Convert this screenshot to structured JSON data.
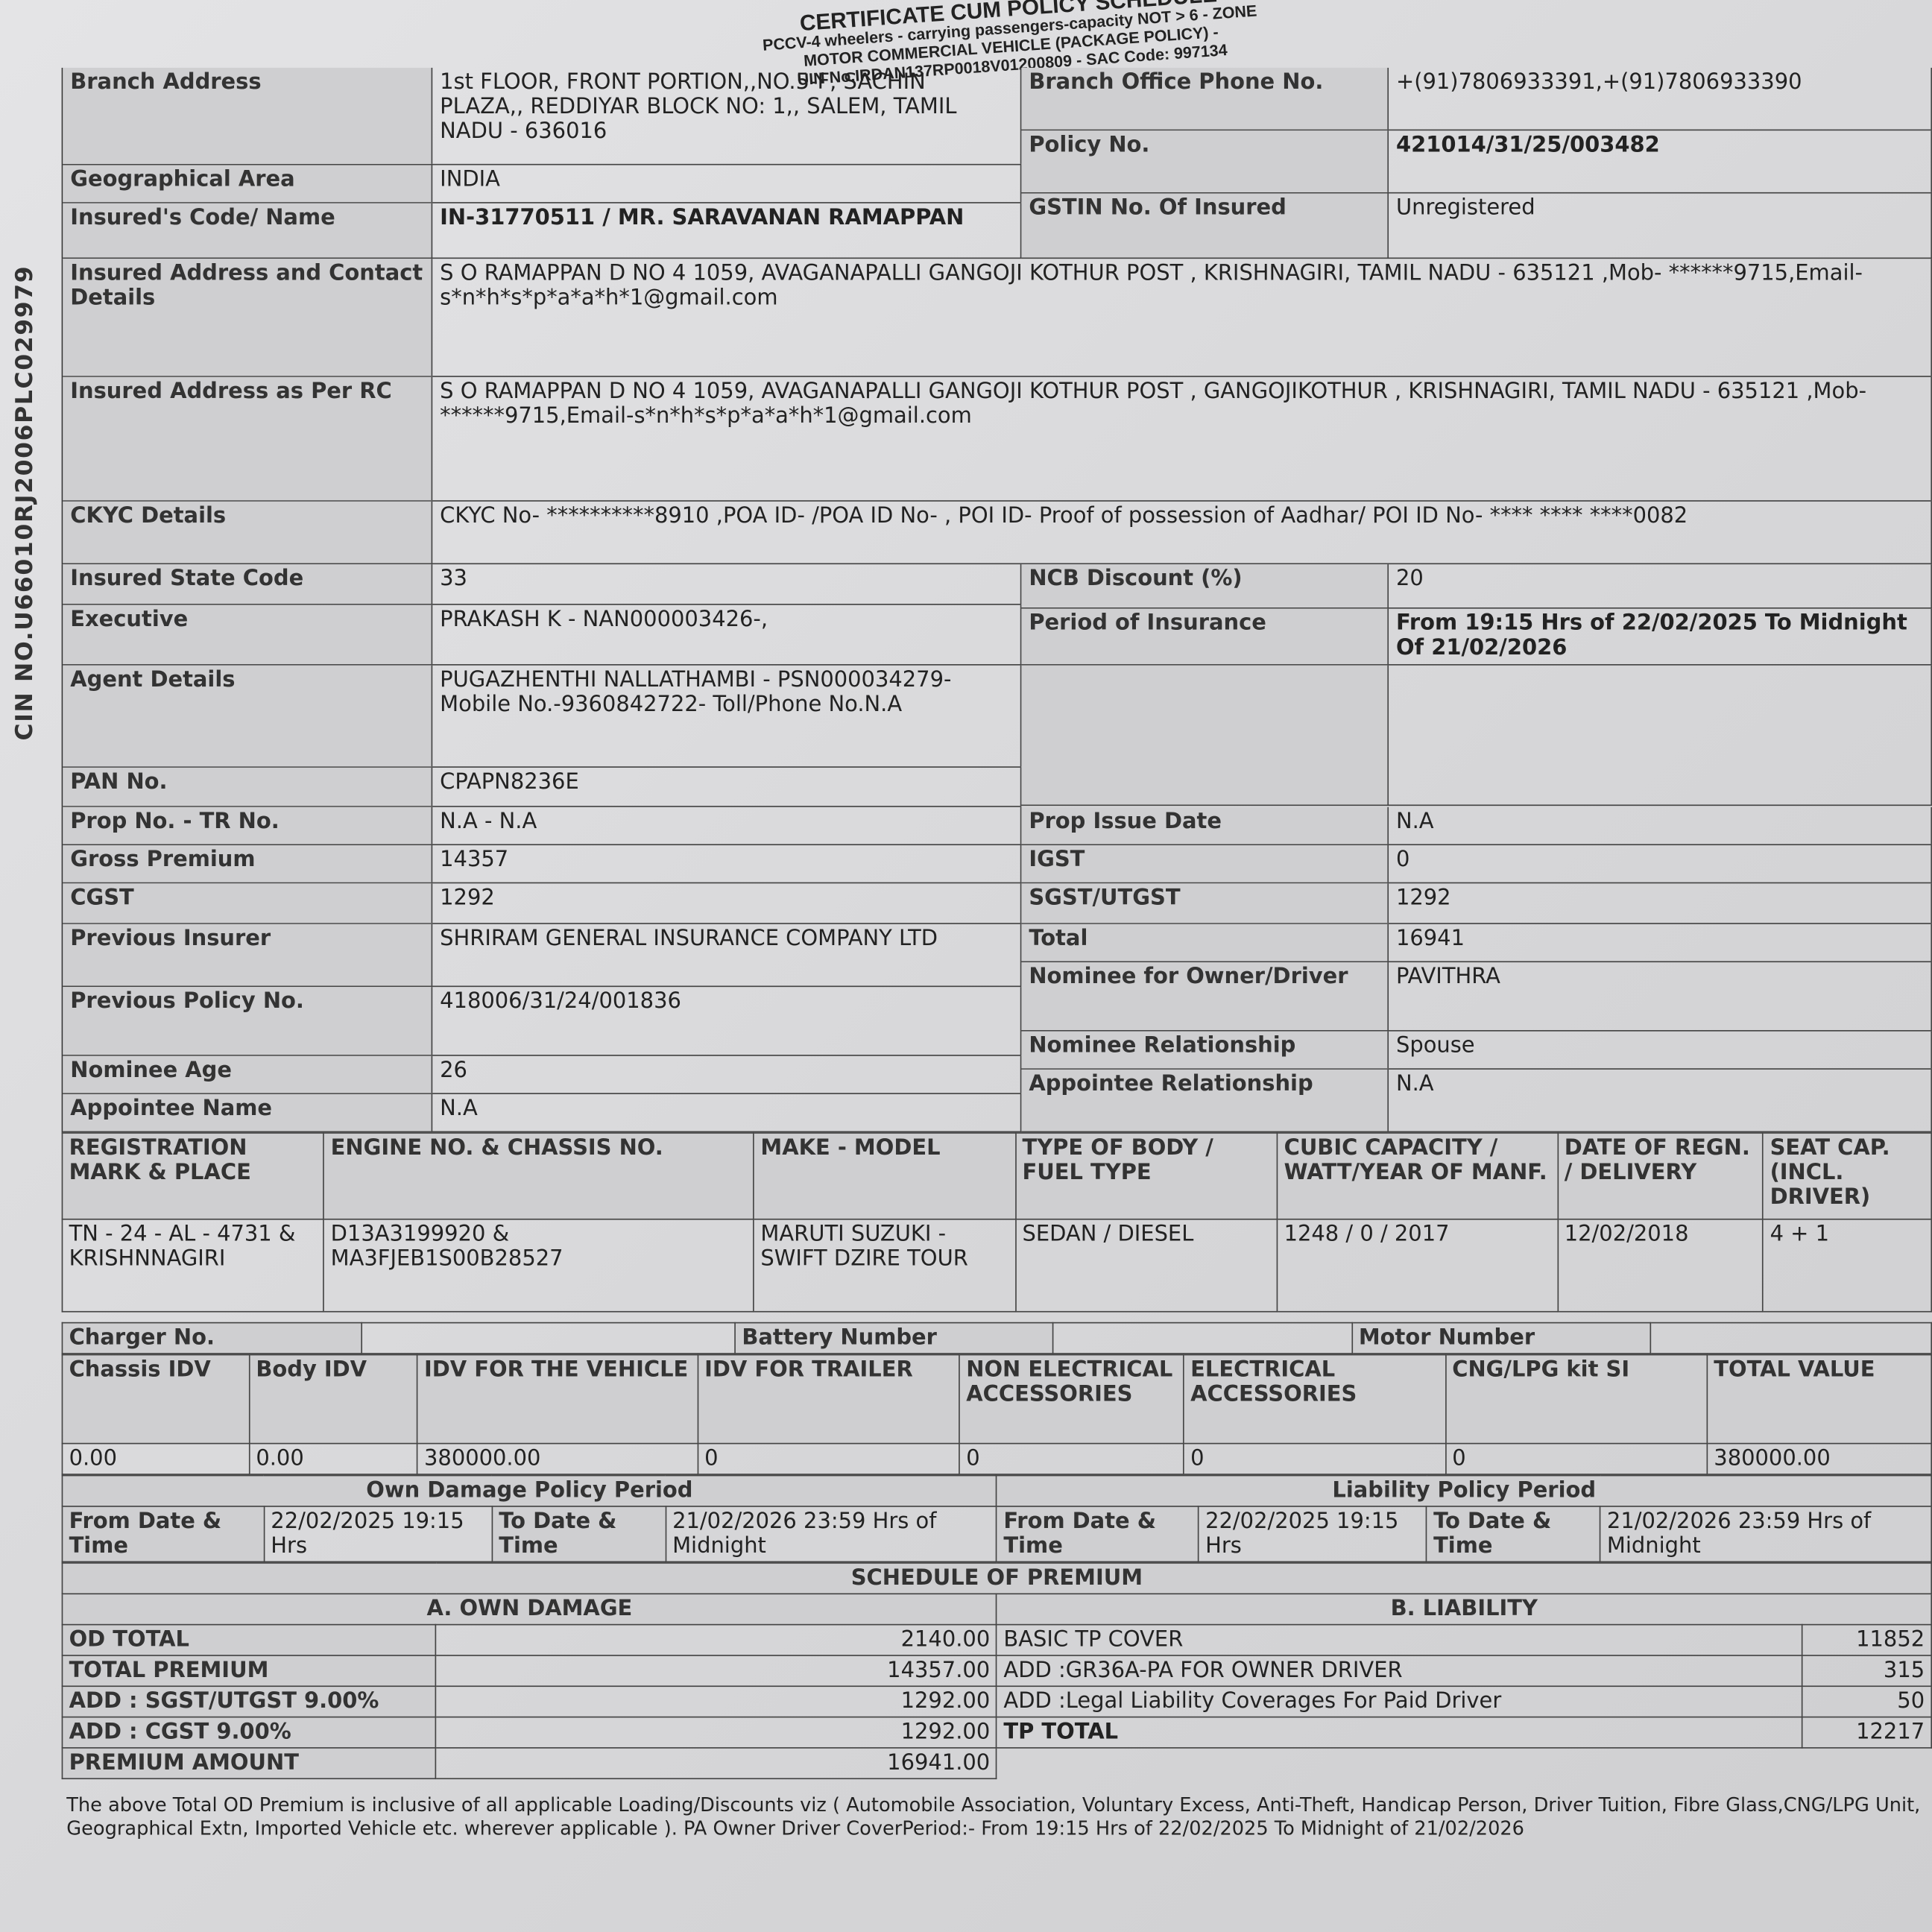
{
  "header": {
    "title": "CERTIFICATE CUM POLICY SCHEDULE",
    "line1": "PCCV-4 wheelers - carrying passengers-capacity NOT > 6 - ZONE",
    "line2": "MOTOR COMMERCIAL VEHICLE (PACKAGE POLICY) -",
    "line3": "UIN No.IRDAN137RP0018V01200809 - SAC Code: 997134"
  },
  "cin": "CIN NO.U66010RJ2006PLC029979",
  "sectionA": {
    "left": [
      {
        "label": "Branch Address",
        "value": "1st FLOOR, FRONT PORTION,,NO.5-F, SACHIN PLAZA,, REDDIYAR BLOCK NO: 1,, SALEM, TAMIL NADU - 636016"
      },
      {
        "label": "Geographical Area",
        "value": "INDIA"
      },
      {
        "label": "Insured's Code/ Name",
        "value": "IN-31770511 / MR. SARAVANAN RAMAPPAN",
        "bold": true
      }
    ],
    "right": [
      {
        "label": "Branch Office Phone No.",
        "value": "+(91)7806933391,+(91)7806933390"
      },
      {
        "label": "Policy No.",
        "value": "421014/31/25/003482",
        "bold": true
      },
      {
        "label": "GSTIN No. Of Insured",
        "value": "Unregistered"
      }
    ]
  },
  "sectionB": [
    {
      "label": "Insured Address and Contact Details",
      "value": "S O RAMAPPAN D NO 4 1059, AVAGANAPALLI GANGOJI KOTHUR POST , KRISHNAGIRI, TAMIL NADU - 635121 ,Mob- ******9715,Email-s*n*h*s*p*a*a*h*1@gmail.com"
    },
    {
      "label": "Insured Address as Per RC",
      "value": "S O RAMAPPAN D NO 4 1059, AVAGANAPALLI GANGOJI KOTHUR POST , GANGOJIKOTHUR , KRISHNAGIRI, TAMIL NADU - 635121 ,Mob- ******9715,Email-s*n*h*s*p*a*a*h*1@gmail.com"
    },
    {
      "label": "CKYC Details",
      "value": "CKYC No- **********8910 ,POA ID- /POA ID No- , POI ID- Proof of possession of Aadhar/ POI ID No- **** **** ****0082"
    }
  ],
  "sectionC": {
    "left": [
      {
        "label": "Insured State Code",
        "value": "33"
      },
      {
        "label": "Executive",
        "value": "PRAKASH K - NAN000003426-,"
      },
      {
        "label": "Agent Details",
        "value": "PUGAZHENTHI NALLATHAMBI - PSN000034279- Mobile No.-9360842722- Toll/Phone No.N.A"
      },
      {
        "label": "PAN No.",
        "value": "CPAPN8236E"
      }
    ],
    "right": [
      {
        "label": "NCB Discount (%)",
        "value": "20"
      },
      {
        "label": "Period of Insurance",
        "value": "From 19:15 Hrs of 22/02/2025 To Midnight Of 21/02/2026",
        "bold": true
      },
      {
        "label": "",
        "value": ""
      }
    ]
  },
  "sectionD": {
    "left": [
      {
        "label": "Prop No. - TR No.",
        "value": "N.A - N.A"
      },
      {
        "label": "Gross Premium",
        "value": "14357"
      },
      {
        "label": "CGST",
        "value": "1292"
      },
      {
        "label": "Previous Insurer",
        "value": "SHRIRAM GENERAL INSURANCE COMPANY LTD"
      },
      {
        "label": "Previous Policy No.",
        "value": "418006/31/24/001836"
      },
      {
        "label": "Nominee Age",
        "value": "26"
      },
      {
        "label": "Appointee Name",
        "value": "N.A"
      }
    ],
    "right": [
      {
        "label": "Prop Issue Date",
        "value": "N.A"
      },
      {
        "label": "IGST",
        "value": "0"
      },
      {
        "label": "SGST/UTGST",
        "value": "1292"
      },
      {
        "label": "Total",
        "value": "16941"
      },
      {
        "label": "Nominee for Owner/Driver",
        "value": "PAVITHRA"
      },
      {
        "label": "Nominee Relationship",
        "value": "Spouse"
      },
      {
        "label": "Appointee Relationship",
        "value": "N.A"
      }
    ]
  },
  "vehicle": {
    "headers": [
      "REGISTRATION MARK & PLACE",
      "ENGINE NO. & CHASSIS NO.",
      "MAKE - MODEL",
      "TYPE OF BODY / FUEL TYPE",
      "CUBIC CAPACITY / WATT/YEAR OF MANF.",
      "DATE OF REGN. / DELIVERY",
      "SEAT CAP. (INCL. DRIVER)"
    ],
    "values": [
      "TN - 24 - AL - 4731 & KRISHNNAGIRI",
      "D13A3199920 & MA3FJEB1S00B28527",
      "MARUTI SUZUKI - SWIFT DZIRE TOUR",
      "SEDAN / DIESEL",
      "1248 / 0 / 2017",
      "12/02/2018",
      "4 + 1"
    ]
  },
  "ev": {
    "charger": "Charger No.",
    "battery": "Battery Number",
    "motor": "Motor Number"
  },
  "idv": {
    "headers": [
      "Chassis IDV",
      "Body IDV",
      "IDV FOR THE VEHICLE",
      "IDV FOR TRAILER",
      "NON ELECTRICAL ACCESSORIES",
      "ELECTRICAL ACCESSORIES",
      "CNG/LPG kit SI",
      "TOTAL VALUE"
    ],
    "values": [
      "0.00",
      "0.00",
      "380000.00",
      "0",
      "0",
      "0",
      "0",
      "380000.00"
    ]
  },
  "period": {
    "od_title": "Own Damage Policy Period",
    "tp_title": "Liability Policy Period",
    "from_label": "From Date & Time",
    "to_label": "To Date & Time",
    "od_from": "22/02/2025 19:15 Hrs",
    "od_to": "21/02/2026 23:59 Hrs of Midnight",
    "tp_from": "22/02/2025 19:15 Hrs",
    "tp_to": "21/02/2026 23:59 Hrs of Midnight"
  },
  "premium": {
    "title": "SCHEDULE OF PREMIUM",
    "od_title": "A. OWN DAMAGE",
    "tp_title": "B. LIABILITY",
    "od": [
      {
        "label": "OD TOTAL",
        "value": "2140.00"
      },
      {
        "label": "TOTAL PREMIUM",
        "value": "14357.00"
      },
      {
        "label": "ADD : SGST/UTGST 9.00%",
        "value": "1292.00"
      },
      {
        "label": "ADD : CGST 9.00%",
        "value": "1292.00"
      },
      {
        "label": "PREMIUM AMOUNT",
        "value": "16941.00"
      }
    ],
    "tp": [
      {
        "label": "BASIC TP COVER",
        "value": "11852"
      },
      {
        "label": "ADD :GR36A-PA FOR OWNER DRIVER",
        "value": "315"
      },
      {
        "label": "ADD :Legal Liability Coverages For Paid Driver",
        "value": "50"
      },
      {
        "label": "TP TOTAL",
        "value": "12217",
        "bold": true
      }
    ]
  },
  "note": "The above Total OD Premium is inclusive of all applicable Loading/Discounts viz ( Automobile Association, Voluntary Excess, Anti-Theft, Handicap Person, Driver Tuition, Fibre Glass,CNG/LPG Unit, Geographical Extn, Imported Vehicle etc. wherever applicable ). PA Owner Driver CoverPeriod:- From 19:15 Hrs of 22/02/2025 To Midnight of 21/02/2026"
}
